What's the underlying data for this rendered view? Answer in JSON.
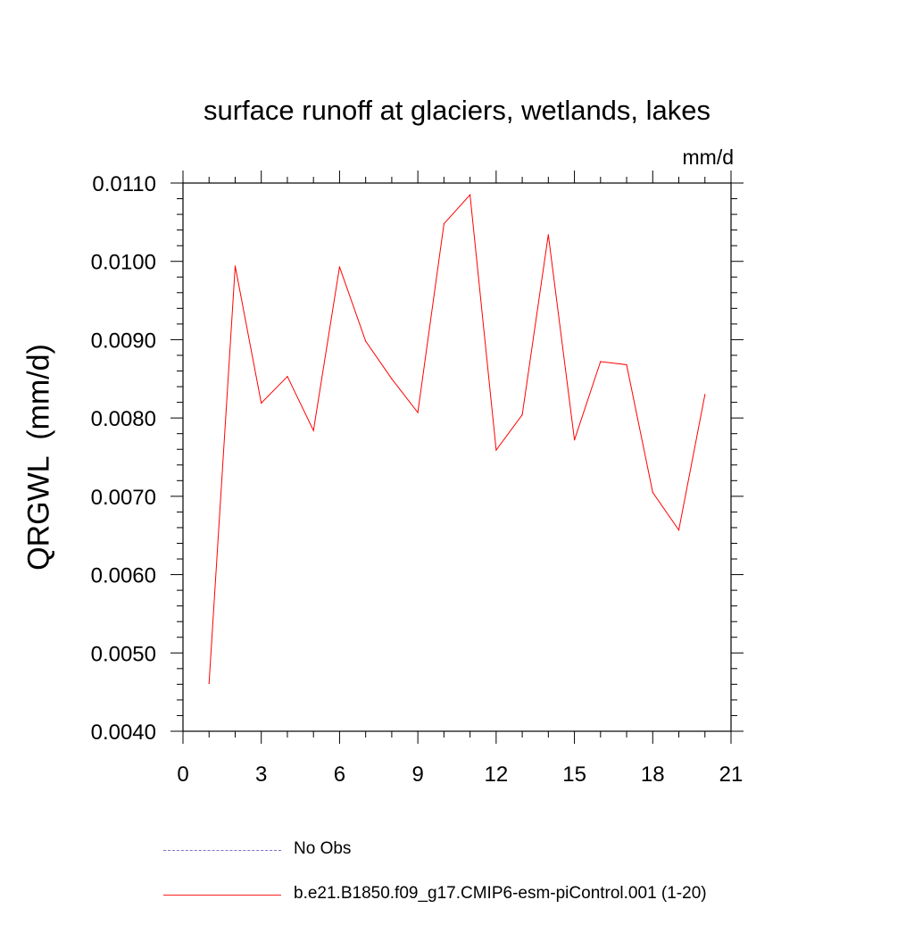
{
  "chart_data": {
    "type": "line",
    "title": "surface runoff at glaciers, wetlands, lakes",
    "units_label": "mm/d",
    "ylabel": "QRGWL  (mm/d)",
    "xlabel": "",
    "xlim": [
      0,
      21
    ],
    "ylim": [
      0.004,
      0.011
    ],
    "x_ticks": [
      0,
      3,
      6,
      9,
      12,
      15,
      18,
      21
    ],
    "x_tick_labels": [
      "0",
      "3",
      "6",
      "9",
      "12",
      "15",
      "18",
      "21"
    ],
    "y_ticks": [
      0.004,
      0.005,
      0.006,
      0.007,
      0.008,
      0.009,
      0.01,
      0.011
    ],
    "y_tick_labels": [
      "0.0040",
      "0.0050",
      "0.0060",
      "0.0070",
      "0.0080",
      "0.0090",
      "0.0100",
      "0.0110"
    ],
    "grid": false,
    "legend_placement": "bottom",
    "series": [
      {
        "name": "b.e21.B1850.f09_g17.CMIP6-esm-piControl.001 (1-20)",
        "color": "#ff0000",
        "style": "solid",
        "x": [
          1,
          2,
          3,
          4,
          5,
          6,
          7,
          8,
          9,
          10,
          11,
          12,
          13,
          14,
          15,
          16,
          17,
          18,
          19,
          20
        ],
        "values": [
          0.00461,
          0.00994,
          0.00819,
          0.00853,
          0.00784,
          0.00993,
          0.00898,
          0.0085,
          0.00807,
          0.01048,
          0.01085,
          0.00759,
          0.00804,
          0.01034,
          0.00772,
          0.00872,
          0.00868,
          0.00705,
          0.00657,
          0.0083
        ]
      }
    ],
    "legend": [
      {
        "label": "No Obs",
        "color": "#7b74c9",
        "style": "dashed"
      },
      {
        "label": "b.e21.B1850.f09_g17.CMIP6-esm-piControl.001 (1-20)",
        "color": "#ff0000",
        "style": "solid"
      }
    ]
  }
}
